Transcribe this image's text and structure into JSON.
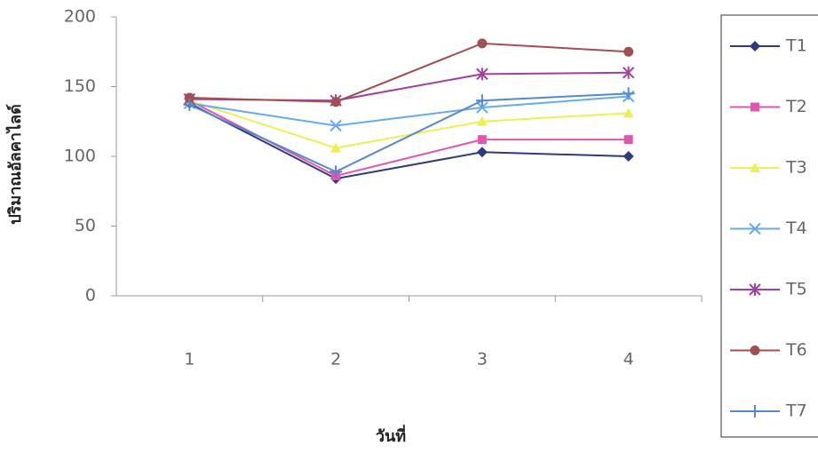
{
  "chart_data": {
    "type": "line",
    "x_label": "วันที่",
    "y_label": "ปริมาณอัลคาไลด์",
    "categories": [
      "1",
      "2",
      "3",
      "4"
    ],
    "ylim": [
      0,
      200
    ],
    "yticks": [
      0,
      50,
      100,
      150,
      200
    ],
    "legend": "right",
    "series": [
      {
        "name": "T1",
        "color": "#2e3a7a",
        "marker": "diamond",
        "values": [
          138,
          84,
          103,
          100
        ]
      },
      {
        "name": "T2",
        "color": "#e055b0",
        "marker": "square",
        "values": [
          140,
          86,
          112,
          112
        ]
      },
      {
        "name": "T3",
        "color": "#eeee55",
        "marker": "triangle",
        "values": [
          140,
          106,
          125,
          131
        ]
      },
      {
        "name": "T4",
        "color": "#66aaee",
        "marker": "x",
        "values": [
          138,
          122,
          135,
          143
        ]
      },
      {
        "name": "T5",
        "color": "#a040a0",
        "marker": "star",
        "values": [
          141,
          140,
          159,
          160
        ]
      },
      {
        "name": "T6",
        "color": "#a05050",
        "marker": "circle",
        "values": [
          142,
          139,
          181,
          175
        ]
      },
      {
        "name": "T7",
        "color": "#5588cc",
        "marker": "plus",
        "values": [
          137,
          89,
          140,
          145
        ]
      }
    ]
  }
}
